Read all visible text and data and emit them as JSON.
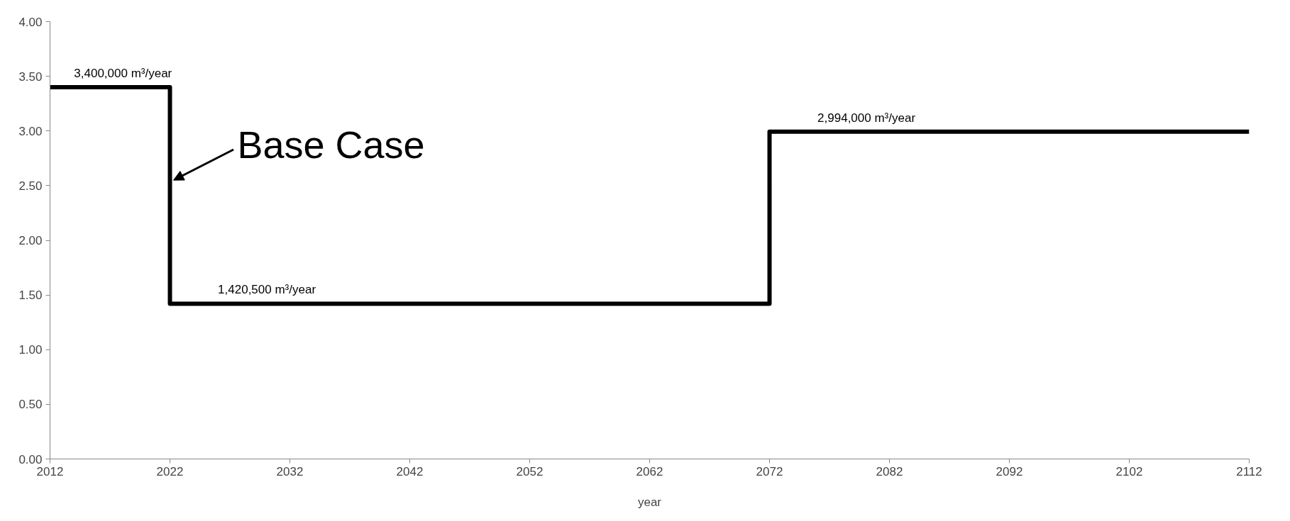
{
  "chart_data": {
    "type": "step",
    "xlabel": "year",
    "x": [
      2012,
      2022,
      2072,
      2112
    ],
    "series": [
      {
        "color": "#000000",
        "values": [
          3.4,
          1.4205,
          2.994,
          2.994
        ]
      }
    ],
    "xlim": [
      2012,
      2112
    ],
    "ylim": [
      0,
      4
    ],
    "xticks": [
      2012,
      2022,
      2032,
      2042,
      2052,
      2062,
      2072,
      2082,
      2092,
      2102,
      2112
    ],
    "yticks": [
      {
        "value": 0,
        "label": "0.00"
      },
      {
        "value": 0.5,
        "label": "0.50"
      },
      {
        "value": 1,
        "label": "1.00"
      },
      {
        "value": 1.5,
        "label": "1.50"
      },
      {
        "value": 2,
        "label": "2.00"
      },
      {
        "value": 2.5,
        "label": "2.50"
      },
      {
        "value": 3,
        "label": "3.00"
      },
      {
        "value": 3.5,
        "label": "3.50"
      },
      {
        "value": 4,
        "label": "4.00"
      }
    ],
    "marker": "none",
    "line_style": "solid",
    "annotations": [
      {
        "text": "3,400,000 m³/year",
        "x": 2014,
        "y": 3.4
      },
      {
        "text": "1,420,500 m³/year",
        "x": 2026,
        "y": 1.4205
      },
      {
        "text": "2,994,000 m³/year",
        "x": 2076,
        "y": 2.994
      },
      {
        "text": "Base Case",
        "x": 2022,
        "y": 2.55
      }
    ]
  }
}
